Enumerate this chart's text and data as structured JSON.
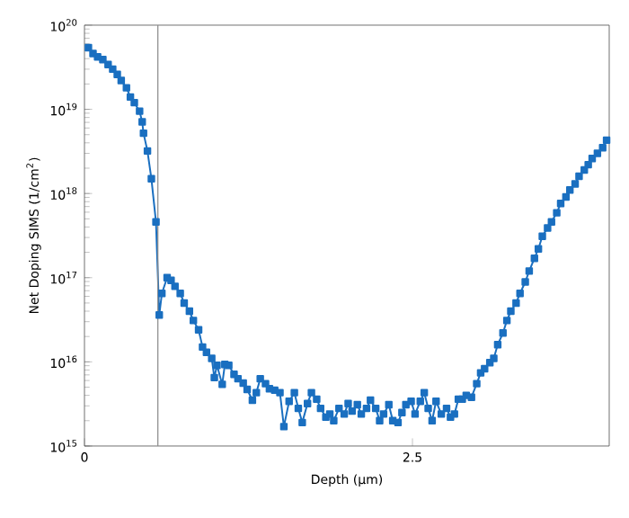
{
  "chart_data": {
    "type": "line",
    "xlabel": "Depth (μm)",
    "ylabel": "Net Doping SIMS (1/cm$^{2}$)",
    "log": "y",
    "marker": "square",
    "line_style": "solid",
    "xlim": [
      0,
      4
    ],
    "xticks": [
      0,
      2.5
    ],
    "ylim": [
      1000000000000000.0,
      1e+20
    ],
    "yticks": [
      {
        "value": 1000000000000000.0,
        "label": "10$^{15}$"
      },
      {
        "value": 1e+16,
        "label": "10$^{16}$"
      },
      {
        "value": 1e+17,
        "label": "10$^{17}$"
      },
      {
        "value": 1e+18,
        "label": "10$^{18}$"
      },
      {
        "value": 1e+19,
        "label": "10$^{19}$"
      },
      {
        "value": 1e+20,
        "label": "10$^{20}$"
      }
    ],
    "ref_lines": [
      {
        "axis": "x",
        "value": 0.56,
        "color": "#8c8c8c"
      }
    ],
    "series": [
      {
        "color": "#1a6fc0",
        "x": [
          0.03,
          0.065,
          0.1,
          0.14,
          0.18,
          0.215,
          0.25,
          0.28,
          0.32,
          0.35,
          0.38,
          0.42,
          0.44,
          0.45,
          0.48,
          0.51,
          0.545,
          0.57,
          0.59,
          0.63,
          0.66,
          0.69,
          0.73,
          0.76,
          0.8,
          0.83,
          0.87,
          0.9,
          0.93,
          0.97,
          0.99,
          1.01,
          1.05,
          1.07,
          1.1,
          1.14,
          1.17,
          1.21,
          1.24,
          1.28,
          1.31,
          1.34,
          1.38,
          1.41,
          1.45,
          1.49,
          1.52,
          1.56,
          1.6,
          1.63,
          1.66,
          1.7,
          1.73,
          1.77,
          1.8,
          1.84,
          1.87,
          1.9,
          1.94,
          1.98,
          2.01,
          2.04,
          2.08,
          2.11,
          2.15,
          2.18,
          2.22,
          2.25,
          2.28,
          2.32,
          2.35,
          2.39,
          2.42,
          2.45,
          2.49,
          2.52,
          2.56,
          2.59,
          2.62,
          2.65,
          2.68,
          2.72,
          2.76,
          2.79,
          2.82,
          2.85,
          2.88,
          2.91,
          2.95,
          2.99,
          3.02,
          3.05,
          3.09,
          3.12,
          3.15,
          3.19,
          3.22,
          3.25,
          3.29,
          3.32,
          3.36,
          3.39,
          3.43,
          3.46,
          3.49,
          3.53,
          3.56,
          3.6,
          3.63,
          3.67,
          3.7,
          3.74,
          3.77,
          3.81,
          3.84,
          3.87,
          3.91,
          3.95,
          3.98
        ],
        "values": [
          5.4e+19,
          4.6e+19,
          4.2e+19,
          3.9e+19,
          3.4e+19,
          3e+19,
          2.6e+19,
          2.2e+19,
          1.8e+19,
          1.4e+19,
          1.2e+19,
          9.5e+18,
          7.1e+18,
          5.2e+18,
          3.2e+18,
          1.5e+18,
          4.6e+17,
          3.6e+16,
          6.5e+16,
          1e+17,
          9.3e+16,
          7.9e+16,
          6.5e+16,
          5e+16,
          4e+16,
          3.1e+16,
          2.4e+16,
          1.5e+16,
          1.3e+16,
          1.1e+16,
          6500000000000000.0,
          9100000000000000.0,
          5400000000000000.0,
          9300000000000000.0,
          9100000000000000.0,
          7100000000000000.0,
          6300000000000000.0,
          5600000000000000.0,
          4700000000000000.0,
          3500000000000000.0,
          4300000000000000.0,
          6300000000000000.0,
          5500000000000000.0,
          4800000000000000.0,
          4600000000000000.0,
          4300000000000000.0,
          1700000000000000.0,
          3400000000000000.0,
          4300000000000000.0,
          2800000000000000.0,
          1900000000000000.0,
          3200000000000000.0,
          4300000000000000.0,
          3600000000000000.0,
          2800000000000000.0,
          2200000000000000.0,
          2400000000000000.0,
          2000000000000000.0,
          2800000000000000.0,
          2400000000000000.0,
          3200000000000000.0,
          2600000000000000.0,
          3100000000000000.0,
          2400000000000000.0,
          2800000000000000.0,
          3500000000000000.0,
          2800000000000000.0,
          2000000000000000.0,
          2400000000000000.0,
          3100000000000000.0,
          2000000000000000.0,
          1900000000000000.0,
          2500000000000000.0,
          3100000000000000.0,
          3400000000000000.0,
          2400000000000000.0,
          3400000000000000.0,
          4300000000000000.0,
          2800000000000000.0,
          2000000000000000.0,
          3400000000000000.0,
          2400000000000000.0,
          2800000000000000.0,
          2200000000000000.0,
          2400000000000000.0,
          3600000000000000.0,
          3600000000000000.0,
          4000000000000000.0,
          3800000000000000.0,
          5500000000000000.0,
          7400000000000000.0,
          8300000000000000.0,
          9800000000000000.0,
          1.1e+16,
          1.6e+16,
          2.2e+16,
          3.1e+16,
          4e+16,
          5e+16,
          6.5e+16,
          8.9e+16,
          1.2e+17,
          1.7e+17,
          2.2e+17,
          3.1e+17,
          3.9e+17,
          4.6e+17,
          5.9e+17,
          7.6e+17,
          9.1e+17,
          1.1e+18,
          1.3e+18,
          1.6e+18,
          1.9e+18,
          2.2e+18,
          2.6e+18,
          3e+18,
          3.5e+18,
          4.3e+18
        ]
      }
    ]
  }
}
